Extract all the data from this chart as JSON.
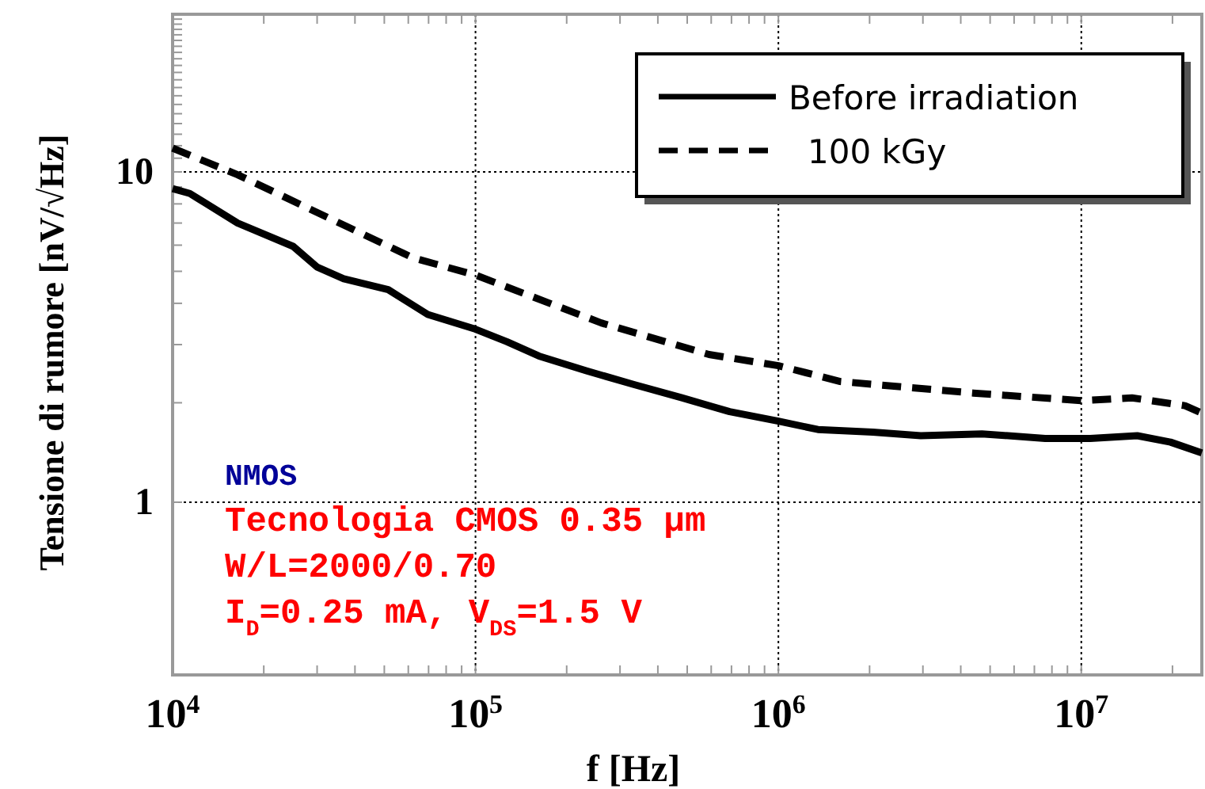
{
  "chart_data": {
    "type": "line",
    "xlabel": "f [Hz]",
    "ylabel": "Tensione di rumore [nV/√Hz]",
    "log": "xy",
    "grid": true,
    "legend": "top right",
    "xlim": [
      10000,
      25000000
    ],
    "ylim": [
      0.3,
      30
    ],
    "xticks": [
      {
        "value": 10000,
        "label": "10$^{4}$"
      },
      {
        "value": 100000,
        "label": "10$^{5}$"
      },
      {
        "value": 1000000,
        "label": "10$^{6}$"
      },
      {
        "value": 10000000,
        "label": "10$^{7}$"
      }
    ],
    "yticks": [
      1,
      10
    ],
    "series": [
      {
        "name": "Before  irradiation",
        "color": "#000000",
        "line_style": "solid",
        "x": [
          10000,
          11400,
          16400,
          25000,
          30000,
          36700,
          51500,
          69600,
          100000,
          127000,
          162000,
          232000,
          334000,
          480000,
          690000,
          1000000,
          1350000,
          2050000,
          2950000,
          4700000,
          7600000,
          10700000,
          15300000,
          19700000,
          25000000
        ],
        "values": [
          8.9,
          8.6,
          7.0,
          5.95,
          5.15,
          4.75,
          4.4,
          3.7,
          3.34,
          3.06,
          2.77,
          2.5,
          2.27,
          2.07,
          1.88,
          1.76,
          1.66,
          1.63,
          1.59,
          1.61,
          1.56,
          1.56,
          1.59,
          1.52,
          1.41
        ]
      },
      {
        "name": "100 kGy",
        "color": "#000000",
        "line_style": "dashed",
        "x": [
          10000,
          16400,
          38000,
          62000,
          100000,
          260000,
          590000,
          1000000,
          1600000,
          4400000,
          10000000,
          14700000,
          22000000,
          25000000
        ],
        "values": [
          11.8,
          9.8,
          6.8,
          5.5,
          4.87,
          3.49,
          2.8,
          2.59,
          2.32,
          2.14,
          2.03,
          2.07,
          1.96,
          1.86
        ]
      }
    ],
    "annotations": [
      "NMOS",
      "Tecnologia CMOS 0.35 µm",
      "W/L=2000/0.70",
      "I$_{D}$=0.25 mA, V$_{DS}$=1.5 V"
    ]
  }
}
